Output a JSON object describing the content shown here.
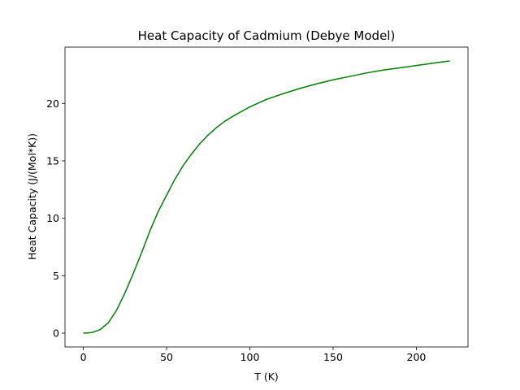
{
  "chart_data": {
    "type": "line",
    "title": "Heat Capacity of Cadmium (Debye Model)",
    "xlabel": "T (K)",
    "ylabel": "Heat Capacity (J/(Mol*K))",
    "xlim": [
      -11,
      231
    ],
    "ylim": [
      -1.2,
      24.9
    ],
    "xticks": [
      0,
      50,
      100,
      150,
      200
    ],
    "yticks": [
      0,
      5,
      10,
      15,
      20
    ],
    "grid": false,
    "series": [
      {
        "color": "#008000",
        "x": [
          0,
          5,
          10,
          15,
          20,
          25,
          30,
          35,
          40,
          45,
          50,
          55,
          60,
          65,
          70,
          75,
          80,
          85,
          90,
          95,
          100,
          110,
          120,
          130,
          140,
          150,
          160,
          170,
          180,
          190,
          200,
          210,
          220
        ],
        "y": [
          0,
          0.05,
          0.3,
          0.9,
          2.0,
          3.5,
          5.2,
          7.0,
          8.9,
          10.6,
          12.0,
          13.4,
          14.6,
          15.6,
          16.5,
          17.25,
          17.9,
          18.45,
          18.9,
          19.3,
          19.7,
          20.35,
          20.85,
          21.3,
          21.7,
          22.05,
          22.35,
          22.65,
          22.9,
          23.1,
          23.3,
          23.5,
          23.7
        ]
      }
    ]
  }
}
